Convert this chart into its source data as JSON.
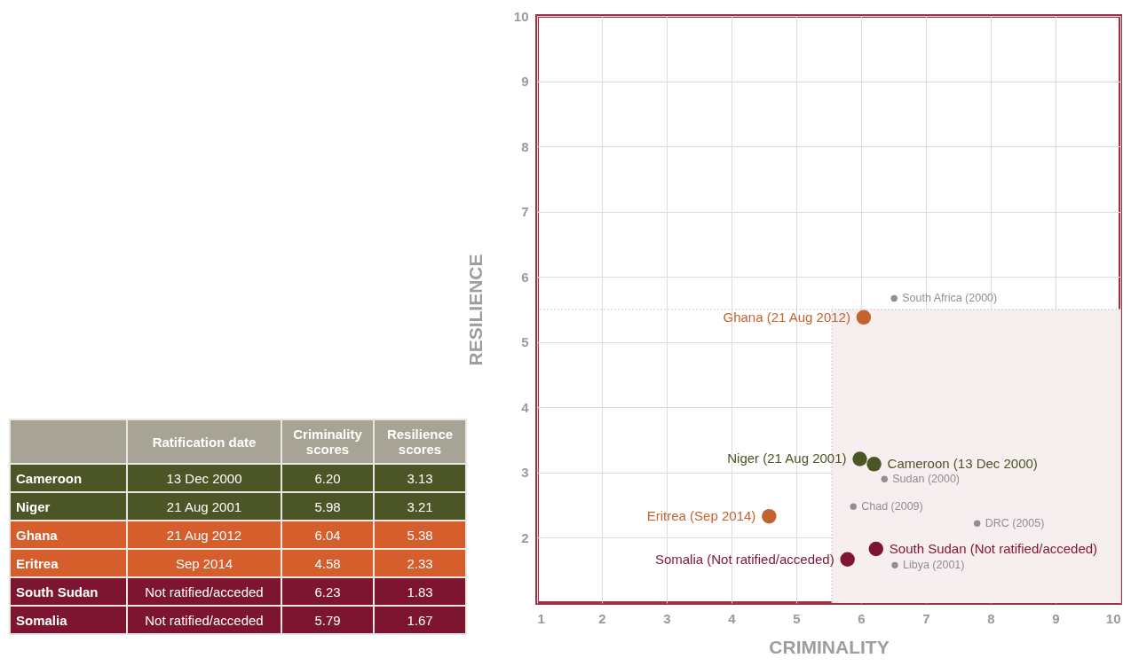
{
  "chart_data": [
    {
      "type": "other",
      "categories": [
        "Cameroon",
        "Niger",
        "Ghana",
        "Eritrea",
        "South Sudan",
        "Somalia"
      ],
      "colors": [
        "#4b5526",
        "#4b5526",
        "#d55e2c",
        "#d55e2c",
        "#7e1530",
        "#7e1530"
      ],
      "annotations": [
        "Ratification date",
        "13 Dec 2000",
        "21 Aug 2001",
        "21 Aug 2012",
        "Sep 2014",
        "Not ratified/acceded",
        "Not ratified/acceded"
      ],
      "series": [
        {
          "name": "Criminality scores",
          "colors": [
            "#4b5526",
            "#4b5526",
            "#d55e2c",
            "#d55e2c",
            "#7e1530",
            "#7e1530"
          ],
          "values": [
            6.2,
            5.98,
            6.04,
            4.58,
            6.23,
            5.79
          ],
          "value_labels": [
            "6.20",
            "5.98",
            "6.04",
            "4.58",
            "6.23",
            "5.79"
          ]
        },
        {
          "name": "Resilience scores",
          "colors": [
            "#4b5526",
            "#4b5526",
            "#d55e2c",
            "#d55e2c",
            "#7e1530",
            "#7e1530"
          ],
          "values": [
            3.13,
            3.21,
            5.38,
            2.33,
            1.83,
            1.67
          ],
          "value_labels": [
            "3.13",
            "3.21",
            "5.38",
            "2.33",
            "1.83",
            "1.67"
          ]
        }
      ]
    },
    {
      "type": "scatter",
      "xlabel": "CRIMINALITY",
      "ylabel": "RESILIENCE",
      "xlim": [
        1,
        10
      ],
      "ylim": [
        1,
        10
      ],
      "xticks": [
        1,
        2,
        3,
        4,
        5,
        6,
        7,
        8,
        9,
        10
      ],
      "yticks": [
        2,
        3,
        4,
        5,
        6,
        7,
        8,
        9,
        10
      ],
      "grid": true,
      "marker": "circle",
      "series": [
        {
          "color": "#4b5526",
          "x": [
            6.2,
            5.98
          ],
          "values": [
            3.13,
            3.21
          ]
        },
        {
          "color": "#c4632f",
          "x": [
            6.04,
            4.58
          ],
          "values": [
            5.38,
            2.33
          ]
        },
        {
          "color": "#7e1530",
          "x": [
            6.23,
            5.79
          ],
          "values": [
            1.83,
            1.67
          ]
        },
        {
          "color": "#8f8f8f",
          "x": [
            6.51,
            6.36,
            5.88,
            7.79,
            6.52
          ],
          "values": [
            5.67,
            2.9,
            2.48,
            2.22,
            1.58
          ]
        }
      ],
      "ref_lines": [
        {
          "axis": "x",
          "value": 5.55,
          "line_style": "dotted",
          "color": "#cccccc"
        },
        {
          "axis": "y",
          "value": 5.5,
          "line_style": "dotted",
          "color": "#cccccc"
        }
      ],
      "bands": [
        {
          "axis": "x",
          "from": 5.55,
          "to": 10,
          "color": "#f7eef0"
        }
      ],
      "annotations": [
        {
          "text": "Cameroon (13 Dec 2000)",
          "x": 6.2,
          "y": 3.13
        },
        {
          "text": "Niger (21 Aug 2001)",
          "x": 5.98,
          "y": 3.21
        },
        {
          "text": "Ghana (21 Aug 2012)",
          "x": 6.04,
          "y": 5.38
        },
        {
          "text": "Eritrea (Sep 2014)",
          "x": 4.58,
          "y": 2.33
        },
        {
          "text": "South Sudan (Not ratified/acceded)",
          "x": 6.23,
          "y": 1.83
        },
        {
          "text": "Somalia (Not ratified/acceded)",
          "x": 5.79,
          "y": 1.67
        },
        {
          "text": "South Africa (2000)",
          "x": 6.51,
          "y": 5.67
        },
        {
          "text": "Sudan (2000)",
          "x": 6.36,
          "y": 2.9
        },
        {
          "text": "Chad (2009)",
          "x": 5.88,
          "y": 2.48
        },
        {
          "text": "DRC (2005)",
          "x": 7.79,
          "y": 2.22
        },
        {
          "text": "Libya (2001)",
          "x": 6.52,
          "y": 1.58
        }
      ]
    }
  ]
}
